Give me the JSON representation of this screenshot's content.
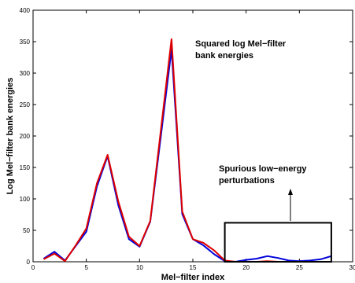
{
  "chart_data": {
    "type": "line",
    "title": "",
    "xlabel": "Mel−filter index",
    "ylabel": "Log Mel−filter bank energies",
    "xlim": [
      0,
      30
    ],
    "ylim": [
      0,
      400
    ],
    "xticks": [
      0,
      5,
      10,
      15,
      20,
      25,
      30
    ],
    "yticks": [
      0,
      50,
      100,
      150,
      200,
      250,
      300,
      350,
      400
    ],
    "x": [
      1,
      2,
      3,
      4,
      5,
      6,
      7,
      8,
      9,
      10,
      11,
      12,
      13,
      14,
      15,
      16,
      17,
      18,
      19,
      20,
      21,
      22,
      23,
      24,
      25,
      26,
      27,
      28
    ],
    "series": [
      {
        "color": "#0000dd",
        "values": [
          5,
          16,
          2,
          25,
          48,
          120,
          168,
          90,
          36,
          24,
          64,
          200,
          338,
          76,
          36,
          26,
          12,
          1,
          0,
          3,
          5,
          9,
          6,
          2,
          1,
          2,
          4,
          9
        ]
      },
      {
        "color": "#dd0000",
        "values": [
          4,
          13,
          1,
          26,
          53,
          125,
          170,
          96,
          40,
          25,
          65,
          210,
          354,
          80,
          36,
          30,
          18,
          2,
          0,
          0,
          0,
          1,
          0,
          0,
          0,
          0,
          0,
          0
        ]
      }
    ],
    "grid": false,
    "annotations": {
      "title_line1": "Squared log Mel−filter",
      "title_line2": "bank energies",
      "note_line1": "Spurious  low−energy",
      "note_line2": "perturbations"
    },
    "highlight_box": {
      "x_range": [
        18,
        28
      ],
      "y_range": [
        0,
        62
      ]
    }
  }
}
